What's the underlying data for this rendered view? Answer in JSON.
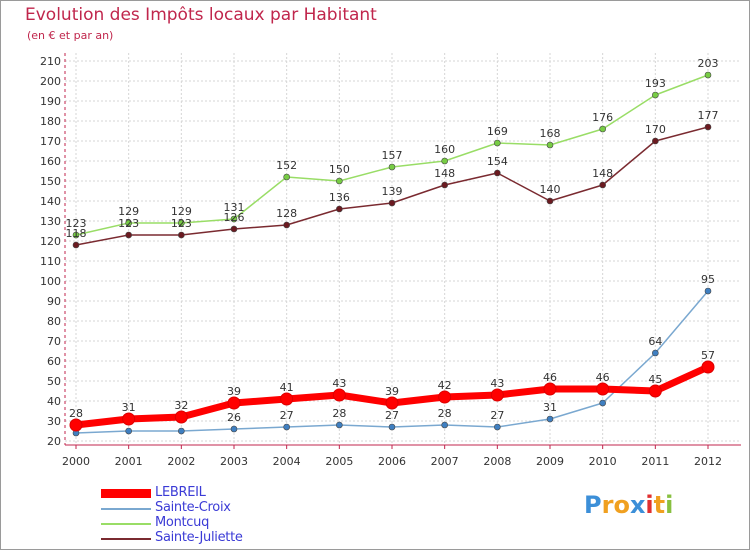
{
  "header": {
    "title": "Evolution des Impôts locaux par Habitant",
    "subtitle": "(en € et par an)"
  },
  "colors": {
    "title": "#c0264c",
    "axis": "#c0264c",
    "grid": "#d6d6d6",
    "tick_text": "#333333",
    "label_text": "#333333",
    "legend_text": "#3b3bd6"
  },
  "chart_data": {
    "type": "line",
    "title": "Evolution des Impôts locaux par Habitant",
    "subtitle": "(en € et par an)",
    "xlabel": "",
    "ylabel": "",
    "x": [
      2000,
      2001,
      2002,
      2003,
      2004,
      2005,
      2006,
      2007,
      2008,
      2009,
      2010,
      2011,
      2012
    ],
    "ylim": [
      20,
      210
    ],
    "yticks": [
      20,
      30,
      40,
      50,
      60,
      70,
      80,
      90,
      100,
      110,
      120,
      130,
      140,
      150,
      160,
      170,
      180,
      190,
      200,
      210
    ],
    "grid": true,
    "legend_position": "bottom-left",
    "series": [
      {
        "name": "LEBREIL",
        "color": "#ff0000",
        "marker_color": "#ff0000",
        "style": "thick",
        "values": [
          28,
          31,
          32,
          39,
          41,
          43,
          39,
          42,
          43,
          46,
          46,
          45,
          57
        ],
        "labels": [
          "28",
          "31",
          "32",
          "39",
          "41",
          "43",
          "39",
          "42",
          "43",
          "46",
          "46",
          "45",
          "57"
        ]
      },
      {
        "name": "Sainte-Croix",
        "color": "#7aa8d0",
        "marker_color": "#3f7fc1",
        "style": "thin",
        "values": [
          24,
          25,
          25,
          26,
          27,
          28,
          27,
          28,
          27,
          31,
          39,
          64,
          95
        ],
        "labels": [
          "",
          "",
          "",
          "26",
          "27",
          "28",
          "27",
          "28",
          "27",
          "31",
          "",
          "64",
          "95"
        ]
      },
      {
        "name": "Montcuq",
        "color": "#99dd66",
        "marker_color": "#77cc44",
        "style": "thin",
        "values": [
          123,
          129,
          129,
          131,
          152,
          150,
          157,
          160,
          169,
          168,
          176,
          193,
          203
        ],
        "labels": [
          "123",
          "129",
          "129",
          "131",
          "152",
          "150",
          "157",
          "160",
          "169",
          "168",
          "176",
          "193",
          "203"
        ]
      },
      {
        "name": "Sainte-Juliette",
        "color": "#7a2a30",
        "marker_color": "#6b1a20",
        "style": "thin",
        "values": [
          118,
          123,
          123,
          126,
          128,
          136,
          139,
          148,
          154,
          140,
          148,
          170,
          177
        ],
        "labels": [
          "118",
          "123",
          "123",
          "126",
          "128",
          "136",
          "139",
          "148",
          "154",
          "140",
          "148",
          "170",
          "177"
        ]
      }
    ]
  },
  "logo": {
    "text": "Proxiti",
    "letters": [
      {
        "ch": "P",
        "color": "#3c8fd8"
      },
      {
        "ch": "r",
        "color": "#f0a020"
      },
      {
        "ch": "o",
        "color": "#f0a020"
      },
      {
        "ch": "x",
        "color": "#3c8fd8"
      },
      {
        "ch": "i",
        "color": "#e03030"
      },
      {
        "ch": "t",
        "color": "#f0a020"
      },
      {
        "ch": "i",
        "color": "#88c040"
      }
    ]
  }
}
